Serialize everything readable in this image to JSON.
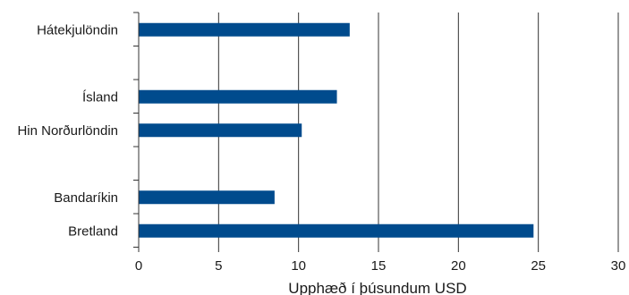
{
  "chart_data": {
    "type": "bar",
    "orientation": "horizontal",
    "categories": [
      "Hátekjulöndin",
      "",
      "Ísland",
      "Hin Norðurlöndin",
      "",
      "Bandaríkin",
      "Bretland"
    ],
    "values": [
      13.2,
      null,
      12.4,
      10.2,
      null,
      8.5,
      24.7
    ],
    "xlabel": "Upphæð í þúsundum USD",
    "ylabel": "",
    "xlim": [
      0,
      30
    ],
    "xticks": [
      0,
      5,
      10,
      15,
      20,
      25,
      30
    ],
    "grid": "vertical",
    "colors": {
      "bar": "#004b8d",
      "grid": "#333333",
      "axis": "#333333"
    }
  }
}
